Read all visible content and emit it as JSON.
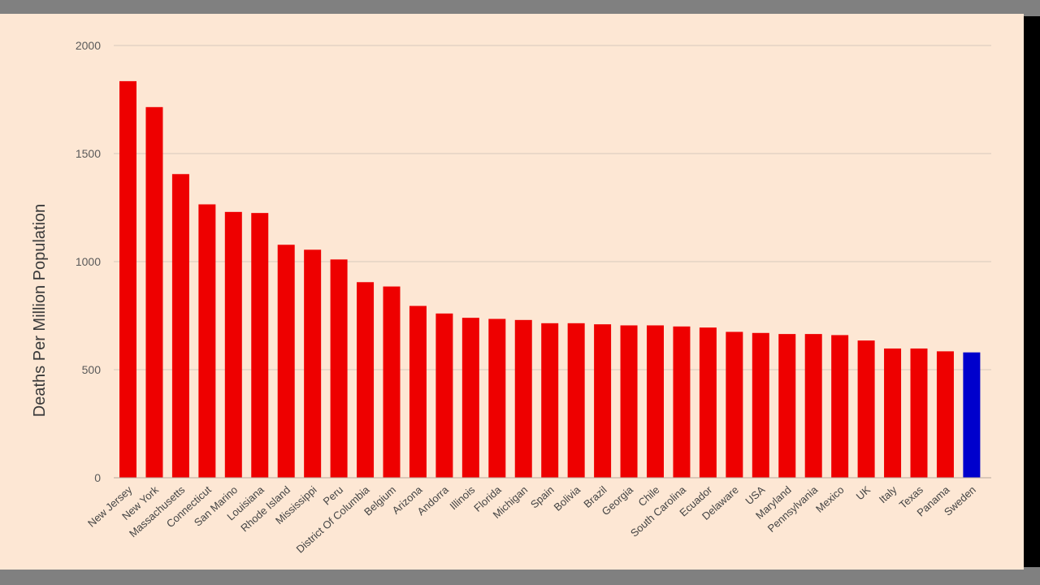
{
  "chart_data": {
    "type": "bar",
    "title": "",
    "xlabel": "",
    "ylabel": "Deaths Per Million Population",
    "ylim": [
      0,
      2000
    ],
    "yticks": [
      0,
      500,
      1000,
      1500,
      2000
    ],
    "grid": true,
    "colors": {
      "default_bar": "#ee0000",
      "highlight_bar": "#0000cc",
      "grid": "#d8c8bc",
      "background": "#fde7d4"
    },
    "highlight": "Sweden",
    "categories": [
      "New Jersey",
      "New York",
      "Massachusetts",
      "Connecticut",
      "San Marino",
      "Louisiana",
      "Rhode Island",
      "Mississippi",
      "Peru",
      "District Of Columbia",
      "Belgium",
      "Arizona",
      "Andorra",
      "Illinois",
      "Florida",
      "Michigan",
      "Spain",
      "Bolivia",
      "Brazil",
      "Georgia",
      "Chile",
      "South Carolina",
      "Ecuador",
      "Delaware",
      "USA",
      "Maryland",
      "Pennsylvania",
      "Mexico",
      "UK",
      "Italy",
      "Texas",
      "Panama",
      "Sweden"
    ],
    "values": [
      1835,
      1715,
      1405,
      1265,
      1230,
      1225,
      1078,
      1055,
      1010,
      905,
      885,
      795,
      760,
      740,
      735,
      730,
      715,
      715,
      710,
      705,
      705,
      700,
      695,
      675,
      670,
      665,
      665,
      660,
      635,
      598,
      598,
      585,
      580
    ]
  }
}
